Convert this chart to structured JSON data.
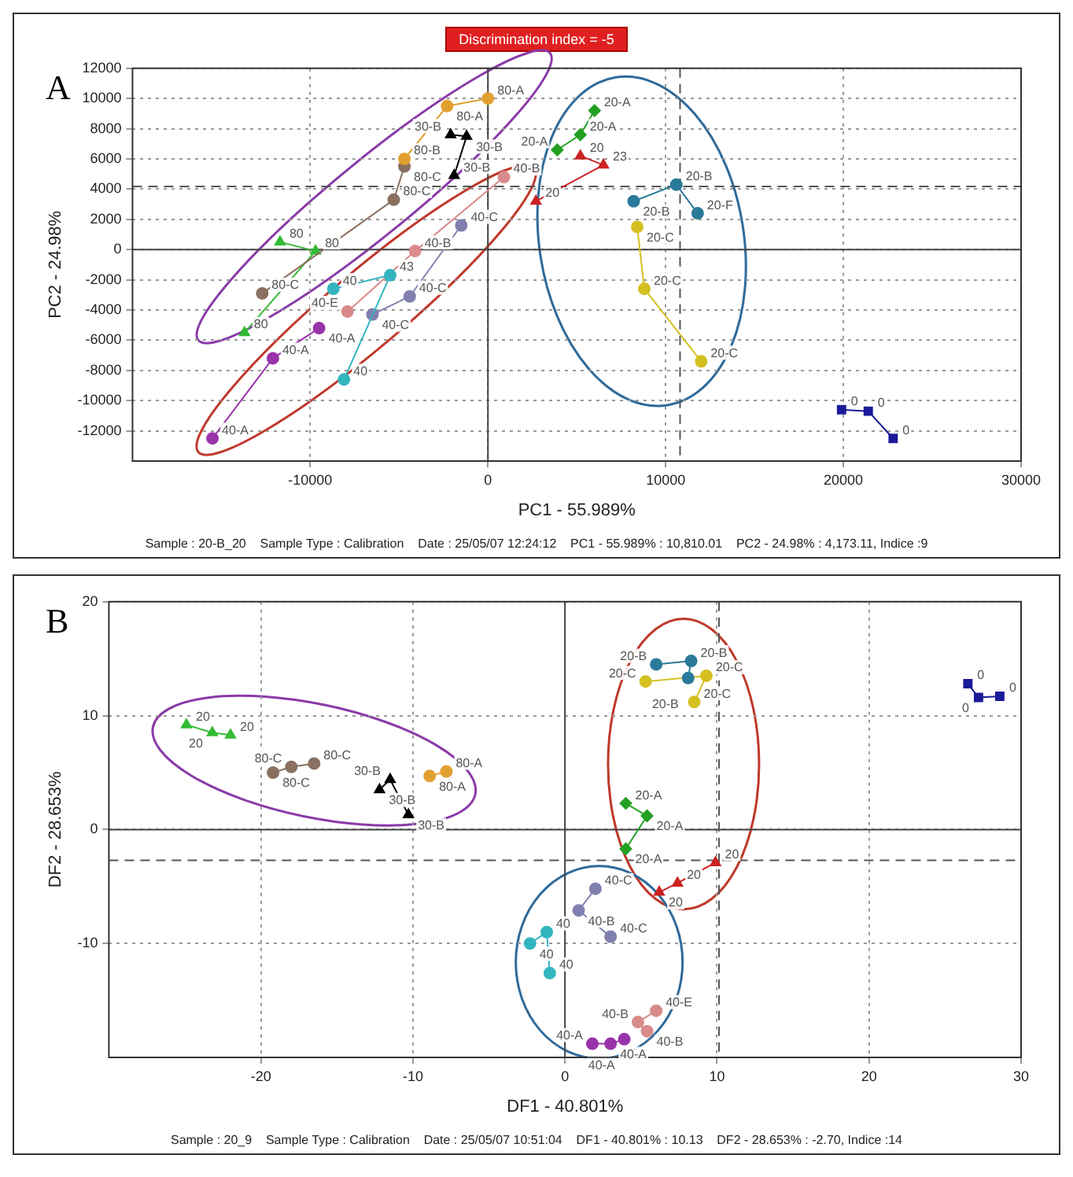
{
  "chart_data": [
    {
      "type": "scatter",
      "title": "Discrimination index = -5",
      "xlabel": "PC1 - 55.989%",
      "ylabel": "PC2 - 24.98%",
      "xlim": [
        -20000,
        30000
      ],
      "xticks": [
        -10000,
        0,
        10000,
        20000,
        30000
      ],
      "ylim": [
        -14000,
        12000
      ],
      "yticks": [
        -12000,
        -10000,
        -8000,
        -6000,
        -4000,
        -2000,
        0,
        2000,
        4000,
        6000,
        8000,
        10000,
        12000
      ],
      "grid": true,
      "legend": false,
      "ref_lines": [
        {
          "axis": "x",
          "value": 10810,
          "line_style": "dashed"
        },
        {
          "axis": "y",
          "value": 4173,
          "line_style": "dashed"
        }
      ],
      "series": [
        {
          "color": "#e0a030",
          "marker": "circle",
          "line_style": "solid",
          "x": [
            0,
            -2300,
            -4700
          ],
          "values": [
            10000,
            9500,
            6000
          ]
        },
        {
          "color": "#000000",
          "marker": "triangle",
          "line_style": "solid",
          "x": [
            -2100,
            -1200,
            -1900
          ],
          "values": [
            7600,
            7500,
            4900
          ]
        },
        {
          "color": "#8a7060",
          "marker": "circle",
          "line_style": "solid",
          "x": [
            -4700,
            -5300,
            -12700
          ],
          "values": [
            5500,
            3300,
            -2900
          ]
        },
        {
          "color": "#33bb33",
          "marker": "triangle",
          "line_style": "solid",
          "x": [
            -11700,
            -9700,
            -13700
          ],
          "values": [
            500,
            -100,
            -5500
          ]
        },
        {
          "color": "#9933aa",
          "marker": "circle",
          "line_style": "solid",
          "x": [
            -9500,
            -12100,
            -15500
          ],
          "values": [
            -5200,
            -7200,
            -12500
          ]
        },
        {
          "color": "#33b5c0",
          "marker": "circle",
          "line_style": "solid",
          "x": [
            -8700,
            -5500,
            -8100
          ],
          "values": [
            -2600,
            -1700,
            -8600
          ]
        },
        {
          "color": "#d98a8a",
          "marker": "circle",
          "line_style": "solid",
          "x": [
            900,
            -4100,
            -7900
          ],
          "values": [
            4800,
            -100,
            -4100
          ]
        },
        {
          "color": "#8080b0",
          "marker": "circle",
          "line_style": "solid",
          "x": [
            -6500,
            -4400,
            -1500
          ],
          "values": [
            -4300,
            -3100,
            1600
          ]
        },
        {
          "color": "#22a022",
          "marker": "diamond",
          "line_style": "solid",
          "x": [
            6000,
            5200,
            3900
          ],
          "values": [
            9200,
            7600,
            6600
          ]
        },
        {
          "color": "#cc2222",
          "marker": "triangle",
          "line_style": "solid",
          "x": [
            5200,
            6500,
            2700
          ],
          "values": [
            6200,
            5600,
            3200
          ]
        },
        {
          "color": "#2a7a9a",
          "marker": "circle",
          "line_style": "solid",
          "x": [
            8200,
            10600,
            11800
          ],
          "values": [
            3200,
            4300,
            2400
          ]
        },
        {
          "color": "#d4c020",
          "marker": "circle",
          "line_style": "solid",
          "x": [
            8400,
            8800,
            12000
          ],
          "values": [
            1500,
            -2600,
            -7400
          ]
        },
        {
          "color": "#1a1a99",
          "marker": "square",
          "line_style": "solid",
          "x": [
            19900,
            21400,
            22800
          ],
          "values": [
            -10600,
            -10700,
            -12500
          ]
        }
      ],
      "annotations": [
        "A",
        "Sample : 20-B_20    Sample Type : Calibration    Date : 25/05/07 12:24:12    PC1 - 55.989% : 10,810.01    PC2 - 24.98% : 4,173.11, Indice :9",
        {
          "text": "80-A",
          "x": 0,
          "y": 10000
        },
        {
          "text": "80-A",
          "x": -2300,
          "y": 9500
        },
        {
          "text": "80-B",
          "x": -4700,
          "y": 6000
        },
        {
          "text": "30-B",
          "x": -2100,
          "y": 7600
        },
        {
          "text": "30-B",
          "x": -1200,
          "y": 7500
        },
        {
          "text": "30-B",
          "x": -1900,
          "y": 4900
        },
        {
          "text": "80-C",
          "x": -4700,
          "y": 5500
        },
        {
          "text": "80-C",
          "x": -5300,
          "y": 3300
        },
        {
          "text": "80-C",
          "x": -12700,
          "y": -2900
        },
        {
          "text": "80",
          "x": -11700,
          "y": 500
        },
        {
          "text": "80",
          "x": -9700,
          "y": -100
        },
        {
          "text": "80",
          "x": -13700,
          "y": -5500
        },
        {
          "text": "40-A",
          "x": -9500,
          "y": -5200
        },
        {
          "text": "40-A",
          "x": -12100,
          "y": -7200
        },
        {
          "text": "40-A",
          "x": -15500,
          "y": -12500
        },
        {
          "text": "40",
          "x": -8700,
          "y": -2600
        },
        {
          "text": "43",
          "x": -5500,
          "y": -1700
        },
        {
          "text": "40",
          "x": -8100,
          "y": -8600
        },
        {
          "text": "40-B",
          "x": 900,
          "y": 4800
        },
        {
          "text": "40-B",
          "x": -4100,
          "y": -100
        },
        {
          "text": "40-E",
          "x": -7900,
          "y": -4100
        },
        {
          "text": "40-C",
          "x": -6500,
          "y": -4300
        },
        {
          "text": "40-C",
          "x": -4400,
          "y": -3100
        },
        {
          "text": "40-C",
          "x": -1500,
          "y": 1600
        },
        {
          "text": "20-A",
          "x": 6000,
          "y": 9200
        },
        {
          "text": "20-A",
          "x": 5200,
          "y": 7600
        },
        {
          "text": "20-A",
          "x": 3900,
          "y": 6600
        },
        {
          "text": "20",
          "x": 5200,
          "y": 6200
        },
        {
          "text": "23",
          "x": 6500,
          "y": 5600
        },
        {
          "text": "20",
          "x": 2700,
          "y": 3200
        },
        {
          "text": "20-B",
          "x": 8200,
          "y": 3200
        },
        {
          "text": "20-B",
          "x": 10600,
          "y": 4300
        },
        {
          "text": "20-F",
          "x": 11800,
          "y": 2400
        },
        {
          "text": "20-C",
          "x": 8400,
          "y": 1500
        },
        {
          "text": "20-C",
          "x": 8800,
          "y": -2600
        },
        {
          "text": "20-C",
          "x": 12000,
          "y": -7400
        },
        {
          "text": "0",
          "x": 19900,
          "y": -10600
        },
        {
          "text": "0",
          "x": 21400,
          "y": -10700
        },
        {
          "text": "0",
          "x": 22800,
          "y": -12500
        }
      ]
    },
    {
      "type": "scatter",
      "xlabel": "DF1 - 40.801%",
      "ylabel": "DF2 - 28.653%",
      "xlim": [
        -30,
        30
      ],
      "xticks": [
        -20,
        -10,
        0,
        10,
        20,
        30
      ],
      "ylim": [
        -20,
        20
      ],
      "yticks": [
        -10,
        0,
        10,
        20
      ],
      "grid": true,
      "legend": false,
      "ref_lines": [
        {
          "axis": "x",
          "value": 10.13,
          "line_style": "dashed"
        },
        {
          "axis": "y",
          "value": -2.7,
          "line_style": "dashed"
        }
      ],
      "series": [
        {
          "color": "#33bb33",
          "marker": "triangle",
          "line_style": "solid",
          "x": [
            -24.9,
            -23.2,
            -22.0
          ],
          "values": [
            9.2,
            8.5,
            8.3
          ]
        },
        {
          "color": "#8a7060",
          "marker": "circle",
          "line_style": "solid",
          "x": [
            -19.2,
            -18.0,
            -16.5
          ],
          "values": [
            5.0,
            5.5,
            5.8
          ]
        },
        {
          "color": "#000000",
          "marker": "triangle",
          "line_style": "solid",
          "x": [
            -12.2,
            -11.5,
            -10.3
          ],
          "values": [
            3.5,
            4.4,
            1.3
          ]
        },
        {
          "color": "#e0a030",
          "marker": "circle",
          "line_style": "solid",
          "x": [
            -8.9,
            -7.8
          ],
          "values": [
            4.7,
            5.1
          ]
        },
        {
          "color": "#2a7a9a",
          "marker": "circle",
          "line_style": "solid",
          "x": [
            6.0,
            8.3,
            8.1
          ],
          "values": [
            14.5,
            14.8,
            13.3
          ]
        },
        {
          "color": "#d4c020",
          "marker": "circle",
          "line_style": "solid",
          "x": [
            5.3,
            9.3,
            8.5
          ],
          "values": [
            13.0,
            13.5,
            11.2
          ]
        },
        {
          "color": "#1a1a99",
          "marker": "square",
          "line_style": "solid",
          "x": [
            26.5,
            27.2,
            28.6
          ],
          "values": [
            12.8,
            11.6,
            11.7
          ]
        },
        {
          "color": "#22a022",
          "marker": "diamond",
          "line_style": "solid",
          "x": [
            4.0,
            5.4,
            4.0
          ],
          "values": [
            2.3,
            1.2,
            -1.7
          ]
        },
        {
          "color": "#cc2222",
          "marker": "triangle",
          "line_style": "solid",
          "x": [
            9.9,
            7.4,
            6.2
          ],
          "values": [
            -2.9,
            -4.7,
            -5.5
          ]
        },
        {
          "color": "#8080b0",
          "marker": "circle",
          "line_style": "solid",
          "x": [
            2.0,
            0.9,
            3.0
          ],
          "values": [
            -5.2,
            -7.1,
            -9.4
          ]
        },
        {
          "color": "#33b5c0",
          "marker": "circle",
          "line_style": "solid",
          "x": [
            -2.3,
            -1.2,
            -1.0
          ],
          "values": [
            -10.0,
            -9.0,
            -12.6
          ]
        },
        {
          "color": "#d98a8a",
          "marker": "circle",
          "line_style": "solid",
          "x": [
            6.0,
            4.8,
            5.4
          ],
          "values": [
            -15.9,
            -16.9,
            -17.7
          ]
        },
        {
          "color": "#9933aa",
          "marker": "circle",
          "line_style": "solid",
          "x": [
            1.8,
            3.0,
            3.9
          ],
          "values": [
            -18.8,
            -18.8,
            -18.4
          ]
        }
      ],
      "annotations": [
        "B",
        "Sample : 20_9    Sample Type : Calibration    Date : 25/05/07 10:51:04    DF1 - 40.801% : 10.13    DF2 - 28.653% : -2.70, Indice :14",
        {
          "text": "20",
          "x": -24.9,
          "y": 9.2
        },
        {
          "text": "20",
          "x": -23.2,
          "y": 8.5
        },
        {
          "text": "20",
          "x": -22.0,
          "y": 8.3
        },
        {
          "text": "80-C",
          "x": -19.2,
          "y": 5.0
        },
        {
          "text": "80-C",
          "x": -18.0,
          "y": 5.5
        },
        {
          "text": "80-C",
          "x": -16.5,
          "y": 5.8
        },
        {
          "text": "30-B",
          "x": -12.2,
          "y": 3.5
        },
        {
          "text": "30-B",
          "x": -11.5,
          "y": 4.4
        },
        {
          "text": "30-B",
          "x": -10.3,
          "y": 1.3
        },
        {
          "text": "80-A",
          "x": -8.9,
          "y": 4.7
        },
        {
          "text": "80-A",
          "x": -7.8,
          "y": 5.1
        },
        {
          "text": "20-B",
          "x": 6.0,
          "y": 14.5
        },
        {
          "text": "20-B",
          "x": 8.3,
          "y": 14.8
        },
        {
          "text": "20-B",
          "x": 8.1,
          "y": 13.3
        },
        {
          "text": "20-C",
          "x": 5.3,
          "y": 13.0
        },
        {
          "text": "20-C",
          "x": 9.3,
          "y": 13.5
        },
        {
          "text": "20-C",
          "x": 8.5,
          "y": 11.2
        },
        {
          "text": "0",
          "x": 26.5,
          "y": 12.8
        },
        {
          "text": "0",
          "x": 27.2,
          "y": 11.6
        },
        {
          "text": "0",
          "x": 28.6,
          "y": 11.7
        },
        {
          "text": "20-A",
          "x": 4.0,
          "y": 2.3
        },
        {
          "text": "20-A",
          "x": 5.4,
          "y": 1.2
        },
        {
          "text": "20-A",
          "x": 4.0,
          "y": -1.7
        },
        {
          "text": "20",
          "x": 9.9,
          "y": -2.9
        },
        {
          "text": "20",
          "x": 7.4,
          "y": -4.7
        },
        {
          "text": "20",
          "x": 6.2,
          "y": -5.5
        },
        {
          "text": "40-C",
          "x": 2.0,
          "y": -5.2
        },
        {
          "text": "40-B",
          "x": 0.9,
          "y": -7.1
        },
        {
          "text": "40-C",
          "x": 3.0,
          "y": -9.4
        },
        {
          "text": "40",
          "x": -2.3,
          "y": -10.0
        },
        {
          "text": "40",
          "x": -1.2,
          "y": -9.0
        },
        {
          "text": "40",
          "x": -1.0,
          "y": -12.6
        },
        {
          "text": "40-E",
          "x": 6.0,
          "y": -15.9
        },
        {
          "text": "40-B",
          "x": 4.8,
          "y": -16.9
        },
        {
          "text": "40-B",
          "x": 5.4,
          "y": -17.7
        },
        {
          "text": "40-A",
          "x": 1.8,
          "y": -18.8
        },
        {
          "text": "40-A",
          "x": 3.0,
          "y": -18.8
        },
        {
          "text": "40-A",
          "x": 3.9,
          "y": -18.4
        }
      ]
    }
  ]
}
